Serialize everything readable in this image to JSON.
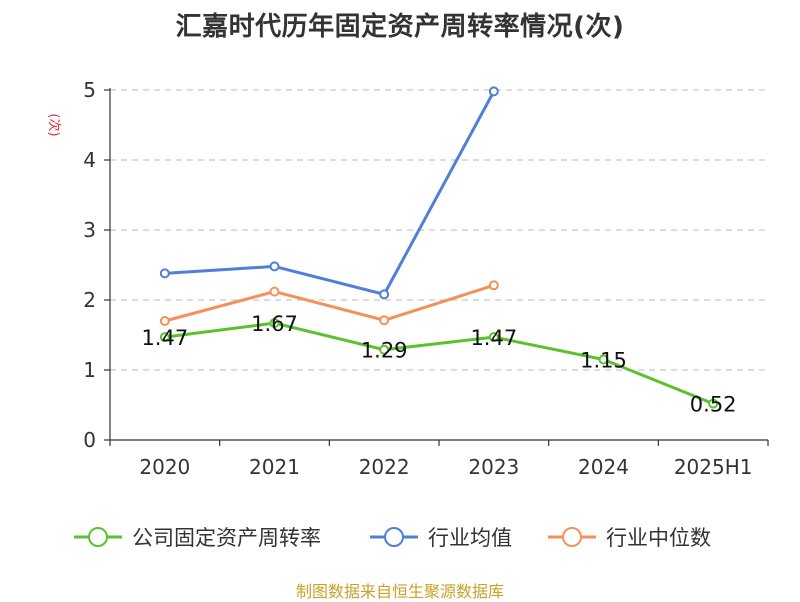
{
  "chart_data": {
    "type": "line",
    "title": "汇嘉时代历年固定资产周转率情况(次)",
    "ylabel": "(次)",
    "xlabel": "",
    "categories": [
      "2020",
      "2021",
      "2022",
      "2023",
      "2024",
      "2025H1"
    ],
    "ylim": [
      0,
      5
    ],
    "yticks": [
      0,
      1,
      2,
      3,
      4,
      5
    ],
    "grid": true,
    "legend_position": "bottom",
    "series": [
      {
        "name": "公司固定资产周转率",
        "color": "#5cc12f",
        "values": [
          1.47,
          1.67,
          1.29,
          1.47,
          1.15,
          0.52
        ],
        "labels": [
          "1.47",
          "1.67",
          "1.29",
          "1.47",
          "1.15",
          "0.52"
        ]
      },
      {
        "name": "行业均值",
        "color": "#4f7fd8",
        "values": [
          2.38,
          2.48,
          2.08,
          4.98,
          null,
          null
        ]
      },
      {
        "name": "行业中位数",
        "color": "#f5905a",
        "values": [
          1.7,
          2.12,
          1.71,
          2.21,
          null,
          null
        ]
      }
    ]
  },
  "source_note": "制图数据来自恒生聚源数据库",
  "colors": {
    "unit_label": "#e03030",
    "grid": "#c8c8c8",
    "axis": "#333333",
    "source_note": "#c9a227"
  }
}
